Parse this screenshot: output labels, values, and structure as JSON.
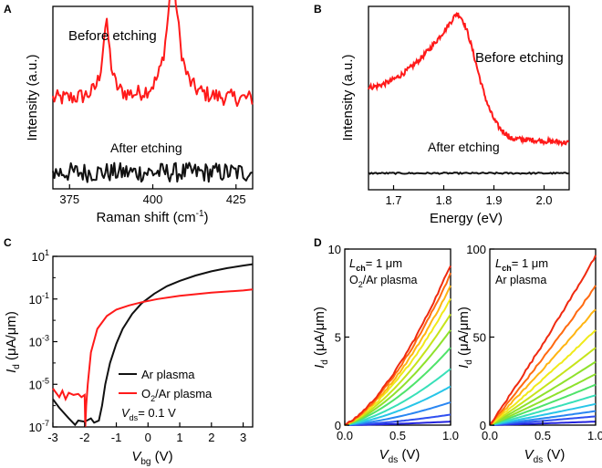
{
  "panels": {
    "A": {
      "letter": "A"
    },
    "B": {
      "letter": "B"
    },
    "C": {
      "letter": "C"
    },
    "D": {
      "letter": "D"
    }
  },
  "colors": {
    "before": "#ff1a1a",
    "after": "#111111",
    "ar": "#111111",
    "o2ar": "#ff1a1a",
    "d_gradient": [
      "#2222dd",
      "#2f4ff0",
      "#2a86f2",
      "#27c5e8",
      "#38e0b8",
      "#4fe36a",
      "#8fe12c",
      "#c6e41a",
      "#f0ea1a",
      "#ffb412",
      "#ff6a10",
      "#f02a10"
    ]
  },
  "chart_data": [
    {
      "id": "A",
      "type": "line",
      "xlabel_main": "Raman shift (cm",
      "xlabel_sup": "-1",
      "xlabel_tail": ")",
      "ylabel": "Intensity (a.u.)",
      "xlim": [
        370,
        430
      ],
      "ylim": [
        0,
        10
      ],
      "xticks": [
        "375",
        "400",
        "425"
      ],
      "xtick_values": [
        375,
        400,
        425
      ],
      "series": [
        {
          "name": "Before etching",
          "label": "Before etching",
          "peaks": [
            {
              "x": 386,
              "h": 4.0,
              "w": 1.4
            },
            {
              "x": 406,
              "h": 6.4,
              "w": 2.2
            }
          ],
          "baseline": 4.9,
          "noise": 0.25
        },
        {
          "name": "After etching",
          "label": "After etching",
          "peaks": [],
          "baseline": 0.9,
          "noise": 0.3
        }
      ]
    },
    {
      "id": "B",
      "type": "line",
      "xlabel": "Energy (eV)",
      "ylabel": "Intensity (a.u.)",
      "xlim": [
        1.65,
        2.05
      ],
      "ylim": [
        0,
        10
      ],
      "xticks": [
        "1.7",
        "1.8",
        "1.9",
        "2.0"
      ],
      "xtick_values": [
        1.7,
        1.8,
        1.9,
        2.0
      ],
      "series": [
        {
          "name": "Before etching",
          "label": "Before etching",
          "peak_x": 1.825,
          "peak_h": 9.6
        },
        {
          "name": "After etching",
          "label": "After etching",
          "baseline": 0.9
        }
      ]
    },
    {
      "id": "C",
      "type": "line",
      "xlabel_main": "V",
      "xlabel_sub": "bg",
      "xlabel_unit": " (V)",
      "ylabel_main": "I",
      "ylabel_sub": "d",
      "ylabel_unit": " (μA/μm)",
      "xlim": [
        -3,
        3.3
      ],
      "ylim_log10": [
        -7,
        1
      ],
      "xticks": [
        "-3",
        "-2",
        "-1",
        "0",
        "1",
        "2",
        "3"
      ],
      "xtick_values": [
        -3,
        -2,
        -1,
        0,
        1,
        2,
        3
      ],
      "yticks": [
        {
          "base": "10",
          "exp": "1",
          "v": 1
        },
        {
          "base": "10",
          "exp": "-1",
          "v": -1
        },
        {
          "base": "10",
          "exp": "-3",
          "v": -3
        },
        {
          "base": "10",
          "exp": "-5",
          "v": -5
        },
        {
          "base": "10",
          "exp": "-7",
          "v": -7
        }
      ],
      "series": [
        {
          "name": "Ar plasma",
          "label": "Ar plasma",
          "points": [
            [
              -3,
              -5.7
            ],
            [
              -2.8,
              -6.1
            ],
            [
              -2.5,
              -6.6
            ],
            [
              -2.3,
              -6.9
            ],
            [
              -2.2,
              -6.7
            ],
            [
              -2.0,
              -6.75
            ],
            [
              -1.8,
              -6.6
            ],
            [
              -1.7,
              -6.8
            ],
            [
              -1.55,
              -6.7
            ],
            [
              -1.45,
              -6.0
            ],
            [
              -1.35,
              -5.0
            ],
            [
              -1.2,
              -4.0
            ],
            [
              -1.0,
              -3.1
            ],
            [
              -0.8,
              -2.4
            ],
            [
              -0.5,
              -1.7
            ],
            [
              -0.2,
              -1.2
            ],
            [
              0.2,
              -0.75
            ],
            [
              0.6,
              -0.4
            ],
            [
              1.0,
              -0.15
            ],
            [
              1.5,
              0.1
            ],
            [
              2.0,
              0.3
            ],
            [
              2.5,
              0.45
            ],
            [
              3.0,
              0.57
            ],
            [
              3.3,
              0.63
            ]
          ]
        },
        {
          "name": "O2/Ar plasma",
          "label_main": "O",
          "label_sub": "2",
          "label_tail": "/Ar plasma",
          "points": [
            [
              -3,
              -5.2
            ],
            [
              -2.8,
              -5.6
            ],
            [
              -2.7,
              -5.3
            ],
            [
              -2.6,
              -5.7
            ],
            [
              -2.5,
              -5.4
            ],
            [
              -2.35,
              -5.5
            ],
            [
              -2.2,
              -5.45
            ],
            [
              -2.1,
              -5.6
            ],
            [
              -2.0,
              -5.5
            ],
            [
              -1.98,
              -7
            ],
            [
              -1.95,
              -6.0
            ],
            [
              -1.9,
              -5.0
            ],
            [
              -1.8,
              -3.5
            ],
            [
              -1.6,
              -2.4
            ],
            [
              -1.3,
              -1.8
            ],
            [
              -1.0,
              -1.5
            ],
            [
              -0.6,
              -1.3
            ],
            [
              -0.2,
              -1.15
            ],
            [
              0.3,
              -1.0
            ],
            [
              1.0,
              -0.85
            ],
            [
              2.0,
              -0.7
            ],
            [
              3.0,
              -0.6
            ],
            [
              3.3,
              -0.55
            ]
          ]
        }
      ],
      "annotation": {
        "main": "V",
        "sub": "ds",
        "tail": "= 0.1 V"
      }
    },
    {
      "id": "D-left",
      "type": "line",
      "xlabel_main": "V",
      "xlabel_sub": "ds",
      "xlabel_unit": " (V)",
      "ylabel_main": "I",
      "ylabel_sub": "d",
      "ylabel_unit": " (μA/μm)",
      "xlim": [
        0,
        1
      ],
      "ylim": [
        0,
        10
      ],
      "xticks": [
        "0.0",
        "0.5",
        "1.0"
      ],
      "xtick_values": [
        0,
        0.5,
        1.0
      ],
      "yticks": [
        "0",
        "5",
        "10"
      ],
      "ytick_values": [
        0,
        5,
        10
      ],
      "annotation_line1_main": "L",
      "annotation_line1_sub": "ch",
      "annotation_line1_tail": "= 1 μm",
      "annotation_line2_main": "O",
      "annotation_line2_sub": "2",
      "annotation_line2_tail": "/Ar plasma",
      "curve_shape": "superlinear",
      "end_values": [
        0.2,
        0.6,
        1.3,
        2.2,
        3.2,
        4.4,
        5.4,
        6.3,
        7.2,
        7.9,
        8.6,
        9.1
      ]
    },
    {
      "id": "D-right",
      "type": "line",
      "xlabel_main": "V",
      "xlabel_sub": "ds",
      "xlabel_unit": " (V)",
      "ylabel_main": "I",
      "ylabel_sub": "d",
      "ylabel_unit": " (μA/μm)",
      "xlim": [
        0,
        1
      ],
      "ylim": [
        0,
        100
      ],
      "xticks": [
        "0.0",
        "0.5",
        "1.0"
      ],
      "xtick_values": [
        0,
        0.5,
        1.0
      ],
      "yticks": [
        "0",
        "50",
        "100"
      ],
      "ytick_values": [
        0,
        50,
        100
      ],
      "annotation_line1_main": "L",
      "annotation_line1_sub": "ch",
      "annotation_line1_tail": "= 1 μm",
      "annotation_line2": "Ar plasma",
      "curve_shape": "linear",
      "end_values": [
        2,
        5,
        8,
        12,
        17,
        23,
        29,
        36,
        44,
        54,
        66,
        79,
        96
      ]
    }
  ]
}
